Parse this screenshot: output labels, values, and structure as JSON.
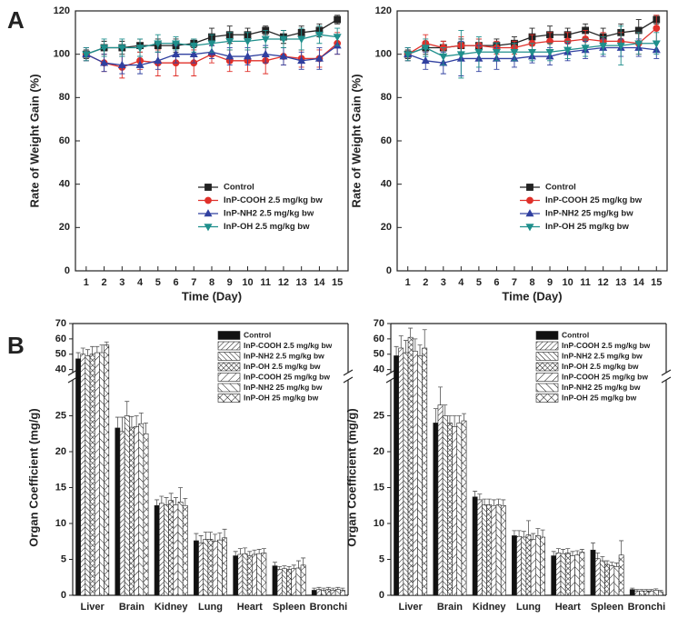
{
  "panels": [
    "A",
    "B"
  ],
  "chart_data": [
    {
      "type": "line",
      "xlabel": "Time (Day)",
      "ylabel": "Rate of Weight Gain (%)",
      "x": [
        1,
        2,
        3,
        4,
        5,
        6,
        7,
        8,
        9,
        10,
        11,
        12,
        13,
        14,
        15
      ],
      "xlim": [
        0.4,
        15.6
      ],
      "xticks": [
        1,
        2,
        3,
        4,
        5,
        6,
        7,
        8,
        9,
        10,
        11,
        12,
        13,
        14,
        15
      ],
      "ylim": [
        0,
        120
      ],
      "yticks": [
        0,
        20,
        40,
        60,
        80,
        100,
        120
      ],
      "legend": "lower-right",
      "series": [
        {
          "name": "Control",
          "color": "#222222",
          "marker": "square",
          "values": [
            100,
            103,
            103,
            104,
            104,
            104,
            105,
            108,
            109,
            109,
            111,
            108,
            110,
            111,
            116
          ],
          "errors": [
            2,
            3,
            3,
            3,
            3,
            3,
            2,
            4,
            4,
            3,
            2,
            3,
            3,
            3,
            2
          ]
        },
        {
          "name": "InP-COOH 2.5 mg/kg bw",
          "color": "#e0302a",
          "marker": "circle",
          "values": [
            100,
            96,
            94,
            97,
            96,
            96,
            96,
            100,
            97,
            97,
            97,
            99,
            98,
            98,
            105
          ],
          "errors": [
            3,
            4,
            5,
            4,
            6,
            6,
            6,
            4,
            5,
            5,
            6,
            4,
            4,
            4,
            5
          ]
        },
        {
          "name": "InP-NH2 2.5 mg/kg bw",
          "color": "#3040a0",
          "marker": "triangle",
          "values": [
            100,
            96,
            95,
            95,
            97,
            100,
            100,
            101,
            99,
            99,
            100,
            99,
            97,
            98,
            104
          ],
          "errors": [
            3,
            4,
            4,
            4,
            4,
            4,
            4,
            3,
            4,
            4,
            4,
            4,
            4,
            5,
            4
          ]
        },
        {
          "name": "InP-OH 2.5 mg/kg bw",
          "color": "#1f8f8c",
          "marker": "triangle-down",
          "values": [
            100,
            103,
            103,
            103,
            105,
            105,
            104,
            105,
            106,
            106,
            107,
            107,
            107,
            109,
            108
          ],
          "errors": [
            3,
            4,
            4,
            4,
            4,
            3,
            3,
            4,
            4,
            4,
            4,
            4,
            5,
            4,
            4
          ]
        }
      ]
    },
    {
      "type": "line",
      "xlabel": "Time (Day)",
      "ylabel": "Rate of Weight Gain (%)",
      "x": [
        1,
        2,
        3,
        4,
        5,
        6,
        7,
        8,
        9,
        10,
        11,
        12,
        13,
        14,
        15
      ],
      "xlim": [
        0.4,
        15.6
      ],
      "xticks": [
        1,
        2,
        3,
        4,
        5,
        6,
        7,
        8,
        9,
        10,
        11,
        12,
        13,
        14,
        15
      ],
      "ylim": [
        0,
        120
      ],
      "yticks": [
        0,
        20,
        40,
        60,
        80,
        100,
        120
      ],
      "legend": "lower-right",
      "series": [
        {
          "name": "Control",
          "color": "#222222",
          "marker": "square",
          "values": [
            100,
            103,
            103,
            104,
            104,
            104,
            105,
            108,
            109,
            109,
            111,
            108,
            110,
            111,
            116
          ],
          "errors": [
            2,
            3,
            3,
            3,
            3,
            3,
            3,
            4,
            4,
            3,
            3,
            4,
            4,
            5,
            2
          ]
        },
        {
          "name": "InP-COOH 25 mg/kg bw",
          "color": "#e0302a",
          "marker": "circle",
          "values": [
            100,
            105,
            103,
            104,
            104,
            103,
            103,
            105,
            106,
            106,
            107,
            106,
            106,
            105,
            112
          ],
          "errors": [
            3,
            4,
            3,
            4,
            3,
            3,
            3,
            4,
            4,
            4,
            4,
            4,
            4,
            5,
            6
          ]
        },
        {
          "name": "InP-NH2 25 mg/kg bw",
          "color": "#3040a0",
          "marker": "triangle",
          "values": [
            100,
            97,
            96,
            98,
            98,
            98,
            98,
            99,
            99,
            101,
            102,
            103,
            103,
            103,
            102
          ],
          "errors": [
            3,
            4,
            5,
            8,
            6,
            5,
            4,
            3,
            4,
            4,
            4,
            4,
            4,
            4,
            4
          ]
        },
        {
          "name": "InP-OH 25 mg/kg bw",
          "color": "#1f8f8c",
          "marker": "triangle-down",
          "values": [
            100,
            103,
            99,
            100,
            101,
            101,
            101,
            101,
            101,
            102,
            103,
            104,
            104,
            105,
            105
          ],
          "errors": [
            3,
            4,
            4,
            11,
            7,
            4,
            4,
            4,
            4,
            4,
            4,
            4,
            9,
            5,
            5
          ]
        }
      ]
    },
    {
      "type": "bar",
      "ylabel": "Organ Coefficient (mg/g)",
      "categories": [
        "Liver",
        "Brain",
        "Kidney",
        "Lung",
        "Heart",
        "Spleen",
        "Bronchi"
      ],
      "ylim": [
        0,
        70
      ],
      "axis_break": [
        30,
        38
      ],
      "yticks": [
        0,
        5,
        10,
        15,
        20,
        25,
        40,
        50,
        60,
        70
      ],
      "legend": "upper-right",
      "series": [
        {
          "name": "Control",
          "color": "#111111",
          "pattern": "solid",
          "values": [
            47,
            23.3,
            12.5,
            7.6,
            5.5,
            4.1,
            0.7
          ],
          "errors": [
            4,
            1.5,
            0.8,
            1,
            0.6,
            0.5,
            0.3
          ]
        },
        {
          "name": "InP-COOH 2.5 mg/kg bw",
          "color": "#111111",
          "pattern": "hatch-right",
          "values": [
            50,
            22.8,
            12.8,
            7.3,
            5.7,
            3.6,
            0.8
          ],
          "errors": [
            4,
            2,
            1,
            1,
            0.8,
            0.4,
            0.3
          ]
        },
        {
          "name": "InP-NH2 2.5 mg/kg bw",
          "color": "#111111",
          "pattern": "hatch-left",
          "values": [
            49,
            25,
            12.6,
            7.8,
            5.8,
            3.7,
            0.7
          ],
          "errors": [
            4,
            2,
            1,
            1,
            0.8,
            0.4,
            0.3
          ]
        },
        {
          "name": "InP-OH 2.5 mg/kg bw",
          "color": "#111111",
          "pattern": "crosshatch",
          "values": [
            50,
            23.4,
            13.2,
            7.8,
            5.5,
            3.6,
            0.8
          ],
          "errors": [
            5,
            1.5,
            1,
            1,
            0.6,
            0.4,
            0.3
          ]
        },
        {
          "name": "InP-COOH 25 mg/kg bw",
          "color": "#111111",
          "pattern": "hatch-right-wide",
          "values": [
            51,
            23.5,
            12.6,
            7.5,
            5.7,
            3.7,
            0.7
          ],
          "errors": [
            4,
            1.5,
            1,
            1,
            0.6,
            0.5,
            0.3
          ]
        },
        {
          "name": "InP-NH2 25 mg/kg bw",
          "color": "#111111",
          "pattern": "hatch-left-wide",
          "values": [
            51,
            23.9,
            13,
            7.7,
            5.8,
            3.8,
            0.8
          ],
          "errors": [
            5,
            1.5,
            2,
            1,
            0.6,
            1,
            0.3
          ]
        },
        {
          "name": "InP-OH 25 mg/kg bw",
          "color": "#111111",
          "pattern": "crosshatch-wide",
          "values": [
            56,
            22.5,
            12.5,
            8,
            5.9,
            4.2,
            0.7
          ],
          "errors": [
            2,
            1.5,
            1,
            1.2,
            0.6,
            1,
            0.3
          ]
        }
      ]
    },
    {
      "type": "bar",
      "ylabel": "Organ Coefficient (mg/g)",
      "categories": [
        "Liver",
        "Brain",
        "Kidney",
        "Lung",
        "Heart",
        "Spleen",
        "Bronchi"
      ],
      "ylim": [
        0,
        70
      ],
      "axis_break": [
        30,
        38
      ],
      "yticks": [
        0,
        5,
        10,
        15,
        20,
        25,
        40,
        50,
        60,
        70
      ],
      "legend": "upper-right",
      "series": [
        {
          "name": "Control",
          "color": "#111111",
          "pattern": "solid",
          "values": [
            49,
            24,
            13.7,
            8.3,
            5.5,
            6.3,
            0.8
          ],
          "errors": [
            6,
            2,
            0.8,
            0.7,
            0.6,
            1,
            0.2
          ]
        },
        {
          "name": "InP-COOH 2.5 mg/kg bw",
          "color": "#111111",
          "pattern": "hatch-right",
          "values": [
            54,
            26.5,
            13.3,
            8.2,
            5.9,
            5.1,
            0.6
          ],
          "errors": [
            8,
            2.5,
            0.8,
            0.8,
            0.6,
            0.8,
            0.2
          ]
        },
        {
          "name": "InP-NH2 2.5 mg/kg bw",
          "color": "#111111",
          "pattern": "hatch-left",
          "values": [
            51,
            25,
            12.6,
            8.1,
            5.8,
            4.8,
            0.6
          ],
          "errors": [
            8,
            1.5,
            0.8,
            0.8,
            0.6,
            0.6,
            0.2
          ]
        },
        {
          "name": "InP-OH 2.5 mg/kg bw",
          "color": "#111111",
          "pattern": "crosshatch",
          "values": [
            61,
            24,
            12.6,
            8.4,
            5.9,
            4.3,
            0.6
          ],
          "errors": [
            6,
            1,
            0.8,
            2,
            0.6,
            0.5,
            0.2
          ]
        },
        {
          "name": "InP-COOH 25 mg/kg bw",
          "color": "#111111",
          "pattern": "hatch-right-wide",
          "values": [
            52,
            23.5,
            12.5,
            7.8,
            5.5,
            4.1,
            0.6
          ],
          "errors": [
            8,
            1.5,
            0.8,
            0.8,
            0.6,
            0.5,
            0.2
          ]
        },
        {
          "name": "InP-NH2 25 mg/kg bw",
          "color": "#111111",
          "pattern": "hatch-left-wide",
          "values": [
            49,
            24,
            12.6,
            8.3,
            5.6,
            4,
            0.7
          ],
          "errors": [
            7,
            1,
            0.8,
            1,
            0.6,
            0.5,
            0.2
          ]
        },
        {
          "name": "InP-OH 25 mg/kg bw",
          "color": "#111111",
          "pattern": "crosshatch-wide",
          "values": [
            54,
            24.3,
            12.5,
            8.1,
            6,
            5.6,
            0.5
          ],
          "errors": [
            12,
            1,
            0.8,
            1,
            0.4,
            2,
            0.2
          ]
        }
      ]
    }
  ]
}
